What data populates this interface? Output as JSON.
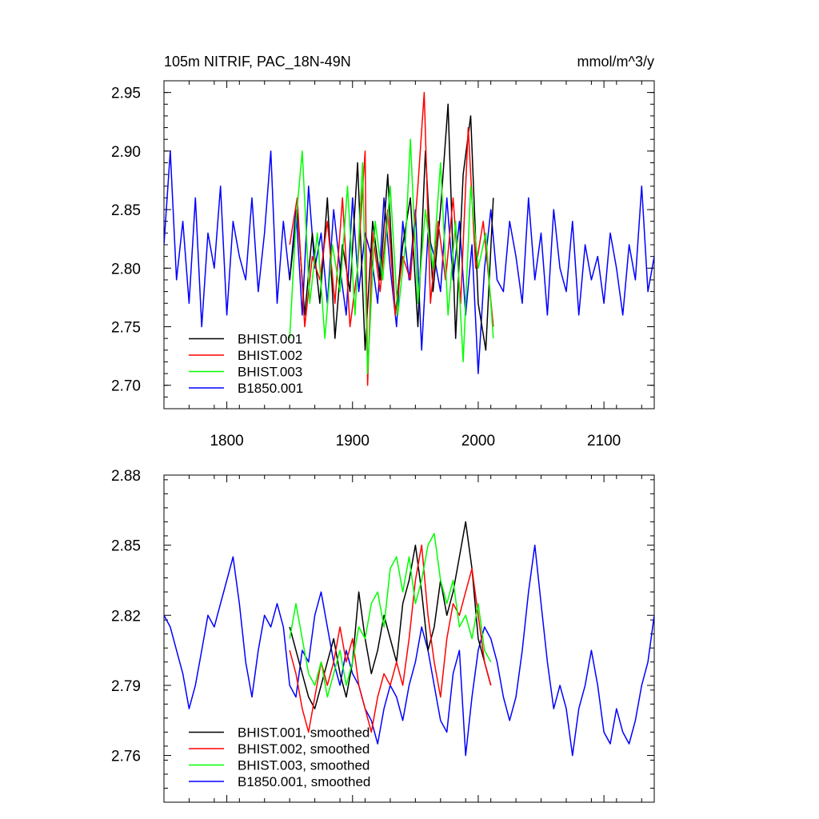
{
  "figure": {
    "title_left": "105m NITRIF, PAC_18N-49N",
    "title_right": "mmol/m^3/y"
  },
  "chart_data": [
    {
      "type": "line",
      "title": "105m NITRIF, PAC_18N-49N",
      "units": "mmol/m^3/y",
      "xlim": [
        1750,
        2140
      ],
      "ylim": [
        2.68,
        2.96
      ],
      "x_ticks": [
        1800,
        1900,
        2000,
        2100
      ],
      "x_tick_labels": [
        "1800",
        "1900",
        "2000",
        "2100"
      ],
      "y_ticks": [
        2.7,
        2.75,
        2.8,
        2.85,
        2.9,
        2.95
      ],
      "y_tick_labels": [
        "2.70",
        "2.75",
        "2.80",
        "2.85",
        "2.90",
        "2.95"
      ],
      "legend_position": "bottom-left",
      "series": [
        {
          "name": "BHIST.001",
          "color": "#000000",
          "x": [
            1850,
            1856,
            1862,
            1868,
            1874,
            1880,
            1886,
            1892,
            1898,
            1904,
            1910,
            1916,
            1922,
            1928,
            1934,
            1940,
            1946,
            1952,
            1958,
            1964,
            1970,
            1976,
            1982,
            1988,
            1994,
            2000,
            2006,
            2012
          ],
          "y": [
            2.79,
            2.85,
            2.76,
            2.83,
            2.77,
            2.86,
            2.74,
            2.82,
            2.78,
            2.89,
            2.73,
            2.84,
            2.79,
            2.88,
            2.76,
            2.82,
            2.86,
            2.75,
            2.9,
            2.78,
            2.85,
            2.94,
            2.74,
            2.88,
            2.93,
            2.77,
            2.73,
            2.86
          ]
        },
        {
          "name": "BHIST.002",
          "color": "#ff0000",
          "x": [
            1850,
            1856,
            1862,
            1868,
            1874,
            1880,
            1886,
            1892,
            1898,
            1904,
            1910,
            1912,
            1916,
            1922,
            1928,
            1934,
            1940,
            1946,
            1952,
            1957,
            1962,
            1968,
            1974,
            1980,
            1986,
            1992,
            1998,
            2004,
            2012
          ],
          "y": [
            2.82,
            2.86,
            2.75,
            2.81,
            2.79,
            2.84,
            2.77,
            2.86,
            2.75,
            2.8,
            2.9,
            2.7,
            2.83,
            2.78,
            2.85,
            2.76,
            2.81,
            2.79,
            2.87,
            2.95,
            2.77,
            2.84,
            2.79,
            2.86,
            2.77,
            2.92,
            2.8,
            2.84,
            2.75
          ]
        },
        {
          "name": "BHIST.003",
          "color": "#00ff00",
          "x": [
            1850,
            1855,
            1860,
            1866,
            1872,
            1878,
            1884,
            1890,
            1896,
            1902,
            1908,
            1912,
            1918,
            1924,
            1930,
            1936,
            1942,
            1946,
            1952,
            1958,
            1964,
            1970,
            1976,
            1982,
            1988,
            1994,
            2000,
            2006,
            2012
          ],
          "y": [
            2.74,
            2.84,
            2.9,
            2.77,
            2.83,
            2.74,
            2.82,
            2.78,
            2.87,
            2.76,
            2.89,
            2.71,
            2.84,
            2.79,
            2.87,
            2.76,
            2.82,
            2.91,
            2.77,
            2.85,
            2.8,
            2.89,
            2.76,
            2.84,
            2.72,
            2.87,
            2.8,
            2.83,
            2.74
          ]
        },
        {
          "name": "B1850.001",
          "color": "#0000ff",
          "x": [
            1750,
            1755,
            1760,
            1765,
            1770,
            1775,
            1780,
            1785,
            1790,
            1795,
            1800,
            1805,
            1810,
            1815,
            1820,
            1825,
            1830,
            1835,
            1840,
            1845,
            1850,
            1855,
            1860,
            1865,
            1870,
            1875,
            1880,
            1885,
            1890,
            1895,
            1900,
            1905,
            1910,
            1915,
            1920,
            1925,
            1930,
            1935,
            1940,
            1945,
            1950,
            1955,
            1960,
            1965,
            1970,
            1975,
            1980,
            1985,
            1990,
            1995,
            2000,
            2005,
            2010,
            2015,
            2020,
            2025,
            2030,
            2035,
            2040,
            2045,
            2050,
            2055,
            2060,
            2065,
            2070,
            2075,
            2080,
            2085,
            2090,
            2095,
            2100,
            2105,
            2110,
            2115,
            2120,
            2125,
            2130,
            2135,
            2140
          ],
          "y": [
            2.82,
            2.9,
            2.79,
            2.84,
            2.77,
            2.86,
            2.75,
            2.83,
            2.8,
            2.87,
            2.76,
            2.84,
            2.81,
            2.79,
            2.86,
            2.78,
            2.83,
            2.9,
            2.77,
            2.84,
            2.79,
            2.85,
            2.76,
            2.87,
            2.8,
            2.83,
            2.77,
            2.85,
            2.8,
            2.76,
            2.86,
            2.78,
            2.83,
            2.81,
            2.77,
            2.86,
            2.8,
            2.75,
            2.84,
            2.79,
            2.85,
            2.73,
            2.83,
            2.81,
            2.78,
            2.86,
            2.79,
            2.84,
            2.76,
            2.82,
            2.71,
            2.8,
            2.85,
            2.79,
            2.78,
            2.84,
            2.81,
            2.77,
            2.86,
            2.79,
            2.83,
            2.76,
            2.85,
            2.8,
            2.78,
            2.84,
            2.76,
            2.82,
            2.79,
            2.81,
            2.77,
            2.83,
            2.8,
            2.76,
            2.82,
            2.79,
            2.87,
            2.78,
            2.81
          ]
        }
      ]
    },
    {
      "type": "line",
      "title": "",
      "xlim": [
        1750,
        2140
      ],
      "ylim": [
        2.74,
        2.88
      ],
      "x_ticks": [
        1800,
        1900,
        2000,
        2100
      ],
      "x_tick_labels": [],
      "y_ticks": [
        2.76,
        2.79,
        2.82,
        2.85,
        2.88
      ],
      "y_tick_labels": [
        "2.76",
        "2.79",
        "2.82",
        "2.85",
        "2.88"
      ],
      "legend_position": "bottom-left",
      "series": [
        {
          "name": "BHIST.001, smoothed",
          "color": "#000000",
          "x": [
            1850,
            1855,
            1860,
            1865,
            1870,
            1875,
            1880,
            1885,
            1890,
            1895,
            1900,
            1905,
            1910,
            1915,
            1920,
            1925,
            1930,
            1935,
            1940,
            1945,
            1950,
            1955,
            1960,
            1965,
            1970,
            1975,
            1980,
            1985,
            1990,
            1995,
            2000,
            2005,
            2010
          ],
          "y": [
            2.815,
            2.805,
            2.795,
            2.785,
            2.78,
            2.79,
            2.8,
            2.81,
            2.795,
            2.785,
            2.8,
            2.83,
            2.81,
            2.795,
            2.805,
            2.82,
            2.81,
            2.8,
            2.825,
            2.835,
            2.85,
            2.83,
            2.805,
            2.815,
            2.835,
            2.82,
            2.83,
            2.845,
            2.86,
            2.84,
            2.81,
            2.8,
            2.79
          ]
        },
        {
          "name": "BHIST.002, smoothed",
          "color": "#ff0000",
          "x": [
            1850,
            1855,
            1860,
            1865,
            1870,
            1875,
            1880,
            1885,
            1890,
            1895,
            1900,
            1905,
            1910,
            1915,
            1920,
            1925,
            1930,
            1935,
            1940,
            1945,
            1950,
            1955,
            1960,
            1965,
            1970,
            1975,
            1980,
            1985,
            1990,
            1995,
            2000,
            2005,
            2010
          ],
          "y": [
            2.805,
            2.795,
            2.78,
            2.77,
            2.785,
            2.8,
            2.79,
            2.8,
            2.815,
            2.8,
            2.81,
            2.79,
            2.78,
            2.77,
            2.785,
            2.795,
            2.79,
            2.8,
            2.79,
            2.81,
            2.835,
            2.85,
            2.82,
            2.8,
            2.785,
            2.81,
            2.825,
            2.82,
            2.83,
            2.84,
            2.82,
            2.8,
            2.79
          ]
        },
        {
          "name": "BHIST.003, smoothed",
          "color": "#00ff00",
          "x": [
            1850,
            1855,
            1860,
            1865,
            1870,
            1875,
            1880,
            1885,
            1890,
            1895,
            1900,
            1905,
            1910,
            1915,
            1920,
            1925,
            1930,
            1935,
            1940,
            1945,
            1950,
            1955,
            1960,
            1965,
            1970,
            1975,
            1980,
            1985,
            1990,
            1995,
            2000,
            2005,
            2010
          ],
          "y": [
            2.81,
            2.825,
            2.81,
            2.795,
            2.79,
            2.8,
            2.785,
            2.795,
            2.805,
            2.79,
            2.8,
            2.815,
            2.81,
            2.825,
            2.83,
            2.815,
            2.84,
            2.845,
            2.83,
            2.845,
            2.825,
            2.835,
            2.85,
            2.855,
            2.835,
            2.825,
            2.835,
            2.815,
            2.82,
            2.81,
            2.825,
            2.805,
            2.8
          ]
        },
        {
          "name": "B1850.001, smoothed",
          "color": "#0000ff",
          "x": [
            1750,
            1755,
            1760,
            1765,
            1770,
            1775,
            1780,
            1785,
            1790,
            1795,
            1800,
            1805,
            1810,
            1815,
            1820,
            1825,
            1830,
            1835,
            1840,
            1845,
            1850,
            1855,
            1860,
            1865,
            1870,
            1875,
            1880,
            1885,
            1890,
            1895,
            1900,
            1905,
            1910,
            1915,
            1920,
            1925,
            1930,
            1935,
            1940,
            1945,
            1950,
            1955,
            1960,
            1965,
            1970,
            1975,
            1980,
            1985,
            1990,
            1995,
            2000,
            2005,
            2010,
            2015,
            2020,
            2025,
            2030,
            2035,
            2040,
            2045,
            2050,
            2055,
            2060,
            2065,
            2070,
            2075,
            2080,
            2085,
            2090,
            2095,
            2100,
            2105,
            2110,
            2115,
            2120,
            2125,
            2130,
            2135,
            2140
          ],
          "y": [
            2.82,
            2.815,
            2.805,
            2.795,
            2.78,
            2.79,
            2.805,
            2.82,
            2.815,
            2.825,
            2.835,
            2.845,
            2.825,
            2.8,
            2.785,
            2.805,
            2.82,
            2.815,
            2.825,
            2.815,
            2.79,
            2.785,
            2.805,
            2.8,
            2.82,
            2.83,
            2.815,
            2.8,
            2.79,
            2.805,
            2.795,
            2.79,
            2.78,
            2.775,
            2.765,
            2.78,
            2.79,
            2.785,
            2.775,
            2.79,
            2.8,
            2.815,
            2.805,
            2.79,
            2.775,
            2.77,
            2.795,
            2.805,
            2.76,
            2.785,
            2.805,
            2.815,
            2.81,
            2.8,
            2.785,
            2.775,
            2.785,
            2.805,
            2.83,
            2.85,
            2.825,
            2.8,
            2.78,
            2.79,
            2.78,
            2.76,
            2.78,
            2.79,
            2.805,
            2.79,
            2.77,
            2.765,
            2.78,
            2.77,
            2.765,
            2.775,
            2.79,
            2.8,
            2.82
          ]
        }
      ]
    }
  ]
}
